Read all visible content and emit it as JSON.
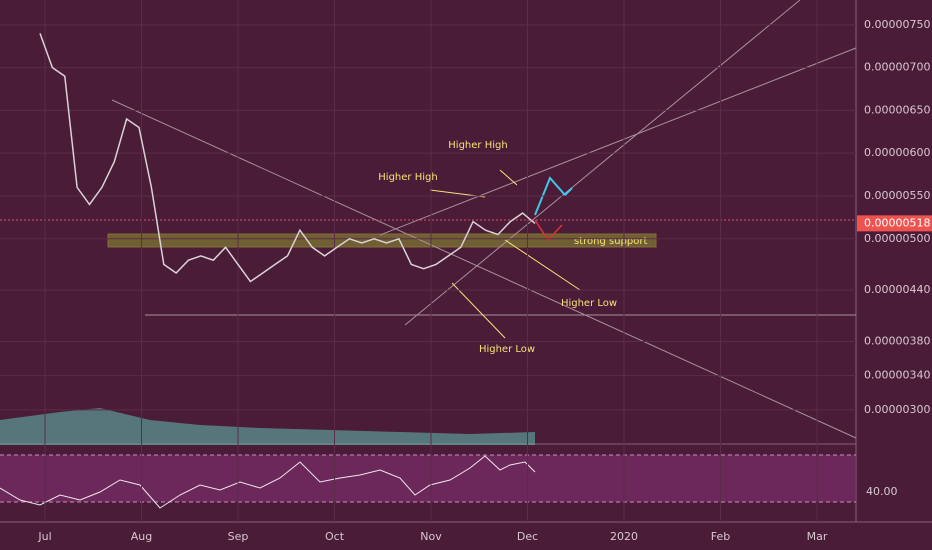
{
  "chart_data": {
    "type": "line",
    "series": [
      {
        "name": "Price",
        "color": "#d9d2d6",
        "values": [
          7.4e-06,
          7e-06,
          6.9e-06,
          5.6e-06,
          5.4e-06,
          5.6e-06,
          5.9e-06,
          6.4e-06,
          6.3e-06,
          5.6e-06,
          4.7e-06,
          4.6e-06,
          4.75e-06,
          4.8e-06,
          4.75e-06,
          4.9e-06,
          4.7e-06,
          4.5e-06,
          4.6e-06,
          4.7e-06,
          4.8e-06,
          5.1e-06,
          4.9e-06,
          4.8e-06,
          4.9e-06,
          5e-06,
          4.95e-06,
          5e-06,
          4.95e-06,
          5e-06,
          4.7e-06,
          4.65e-06,
          4.7e-06,
          4.8e-06,
          4.9e-06,
          5.2e-06,
          5.1e-06,
          5.05e-06,
          5.2e-06,
          5.3e-06,
          5.18e-06
        ]
      }
    ],
    "xticks": [
      "Jul",
      "Aug",
      "Sep",
      "Oct",
      "Nov",
      "Dec",
      "2020",
      "Feb",
      "Mar"
    ],
    "ylim": [
      2.625e-06,
      7.79e-06
    ],
    "yticks": [
      {
        "value": 3e-06,
        "label": "0.00000300"
      },
      {
        "value": 3.4e-06,
        "label": "0.00000340"
      },
      {
        "value": 3.8e-06,
        "label": "0.00000380"
      },
      {
        "value": 4.4e-06,
        "label": "0.00000440"
      },
      {
        "value": 5e-06,
        "label": "0.00000500"
      },
      {
        "value": 5.5e-06,
        "label": "0.00000550"
      },
      {
        "value": 6e-06,
        "label": "0.00000600"
      },
      {
        "value": 6.5e-06,
        "label": "0.00000650"
      },
      {
        "value": 7e-06,
        "label": "0.00000700"
      },
      {
        "value": 7.5e-06,
        "label": "0.00000750"
      }
    ],
    "last_price": {
      "value": 5.18e-06,
      "label": "0.00000518"
    },
    "annotations": [
      "Higher High",
      "Higher High",
      "Higher Low",
      "Higher Low",
      "strong support"
    ],
    "rsi_label": "40.00",
    "grid": true
  }
}
